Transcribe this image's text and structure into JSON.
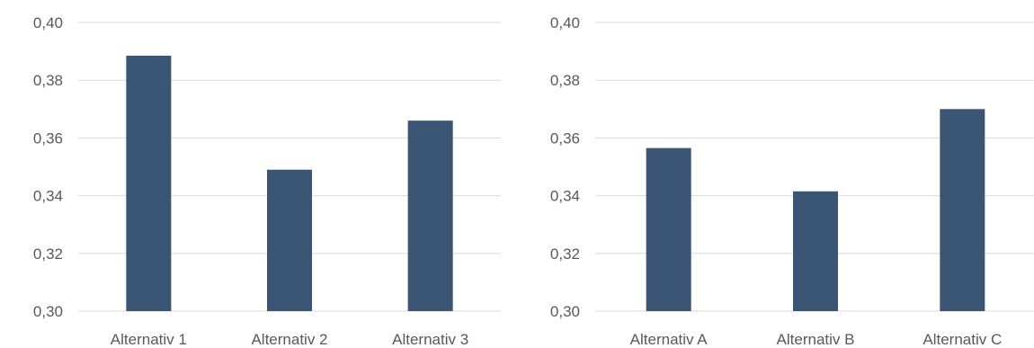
{
  "colors": {
    "bar": "#3b5674",
    "grid": "#d9d9d9",
    "text": "#595959"
  },
  "chart_data": [
    {
      "type": "bar",
      "categories": [
        "Alternativ 1",
        "Alternativ 2",
        "Alternativ 3"
      ],
      "values": [
        0.3885,
        0.349,
        0.366
      ],
      "ylim": [
        0.3,
        0.4
      ],
      "yticks": [
        "0,30",
        "0,32",
        "0,34",
        "0,36",
        "0,38",
        "0,40"
      ],
      "grid": true,
      "title": "",
      "xlabel": "",
      "ylabel": ""
    },
    {
      "type": "bar",
      "categories": [
        "Alternativ A",
        "Alternativ B",
        "Alternativ C"
      ],
      "values": [
        0.3565,
        0.3415,
        0.37
      ],
      "ylim": [
        0.3,
        0.4
      ],
      "yticks": [
        "0,30",
        "0,32",
        "0,34",
        "0,36",
        "0,38",
        "0,40"
      ],
      "grid": true,
      "title": "",
      "xlabel": "",
      "ylabel": ""
    }
  ]
}
